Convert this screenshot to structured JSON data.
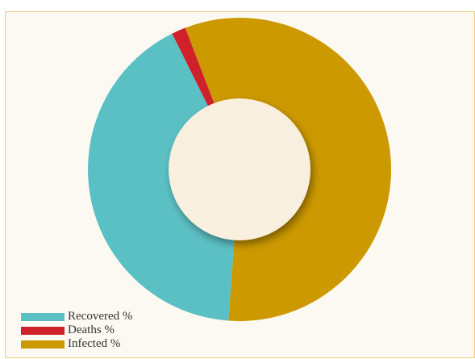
{
  "chart_data": {
    "type": "pie",
    "variant": "donut",
    "categories": [
      "Recovered %",
      "Deaths %",
      "Infected %"
    ],
    "values": [
      41.5,
      1.5,
      57.0
    ],
    "value_unit": "%",
    "start_category": "Infected %",
    "colors": {
      "Recovered %": "#5bc0c4",
      "Deaths %": "#d0202a",
      "Infected %": "#cc9900"
    },
    "center_color": "#f8efdf",
    "background_color": "#fcf9f2",
    "border_color": "#f1c77e",
    "title": "",
    "legend": {
      "position": "bottom-left",
      "entries": [
        "Recovered %",
        "Deaths %",
        "Infected %"
      ]
    }
  }
}
